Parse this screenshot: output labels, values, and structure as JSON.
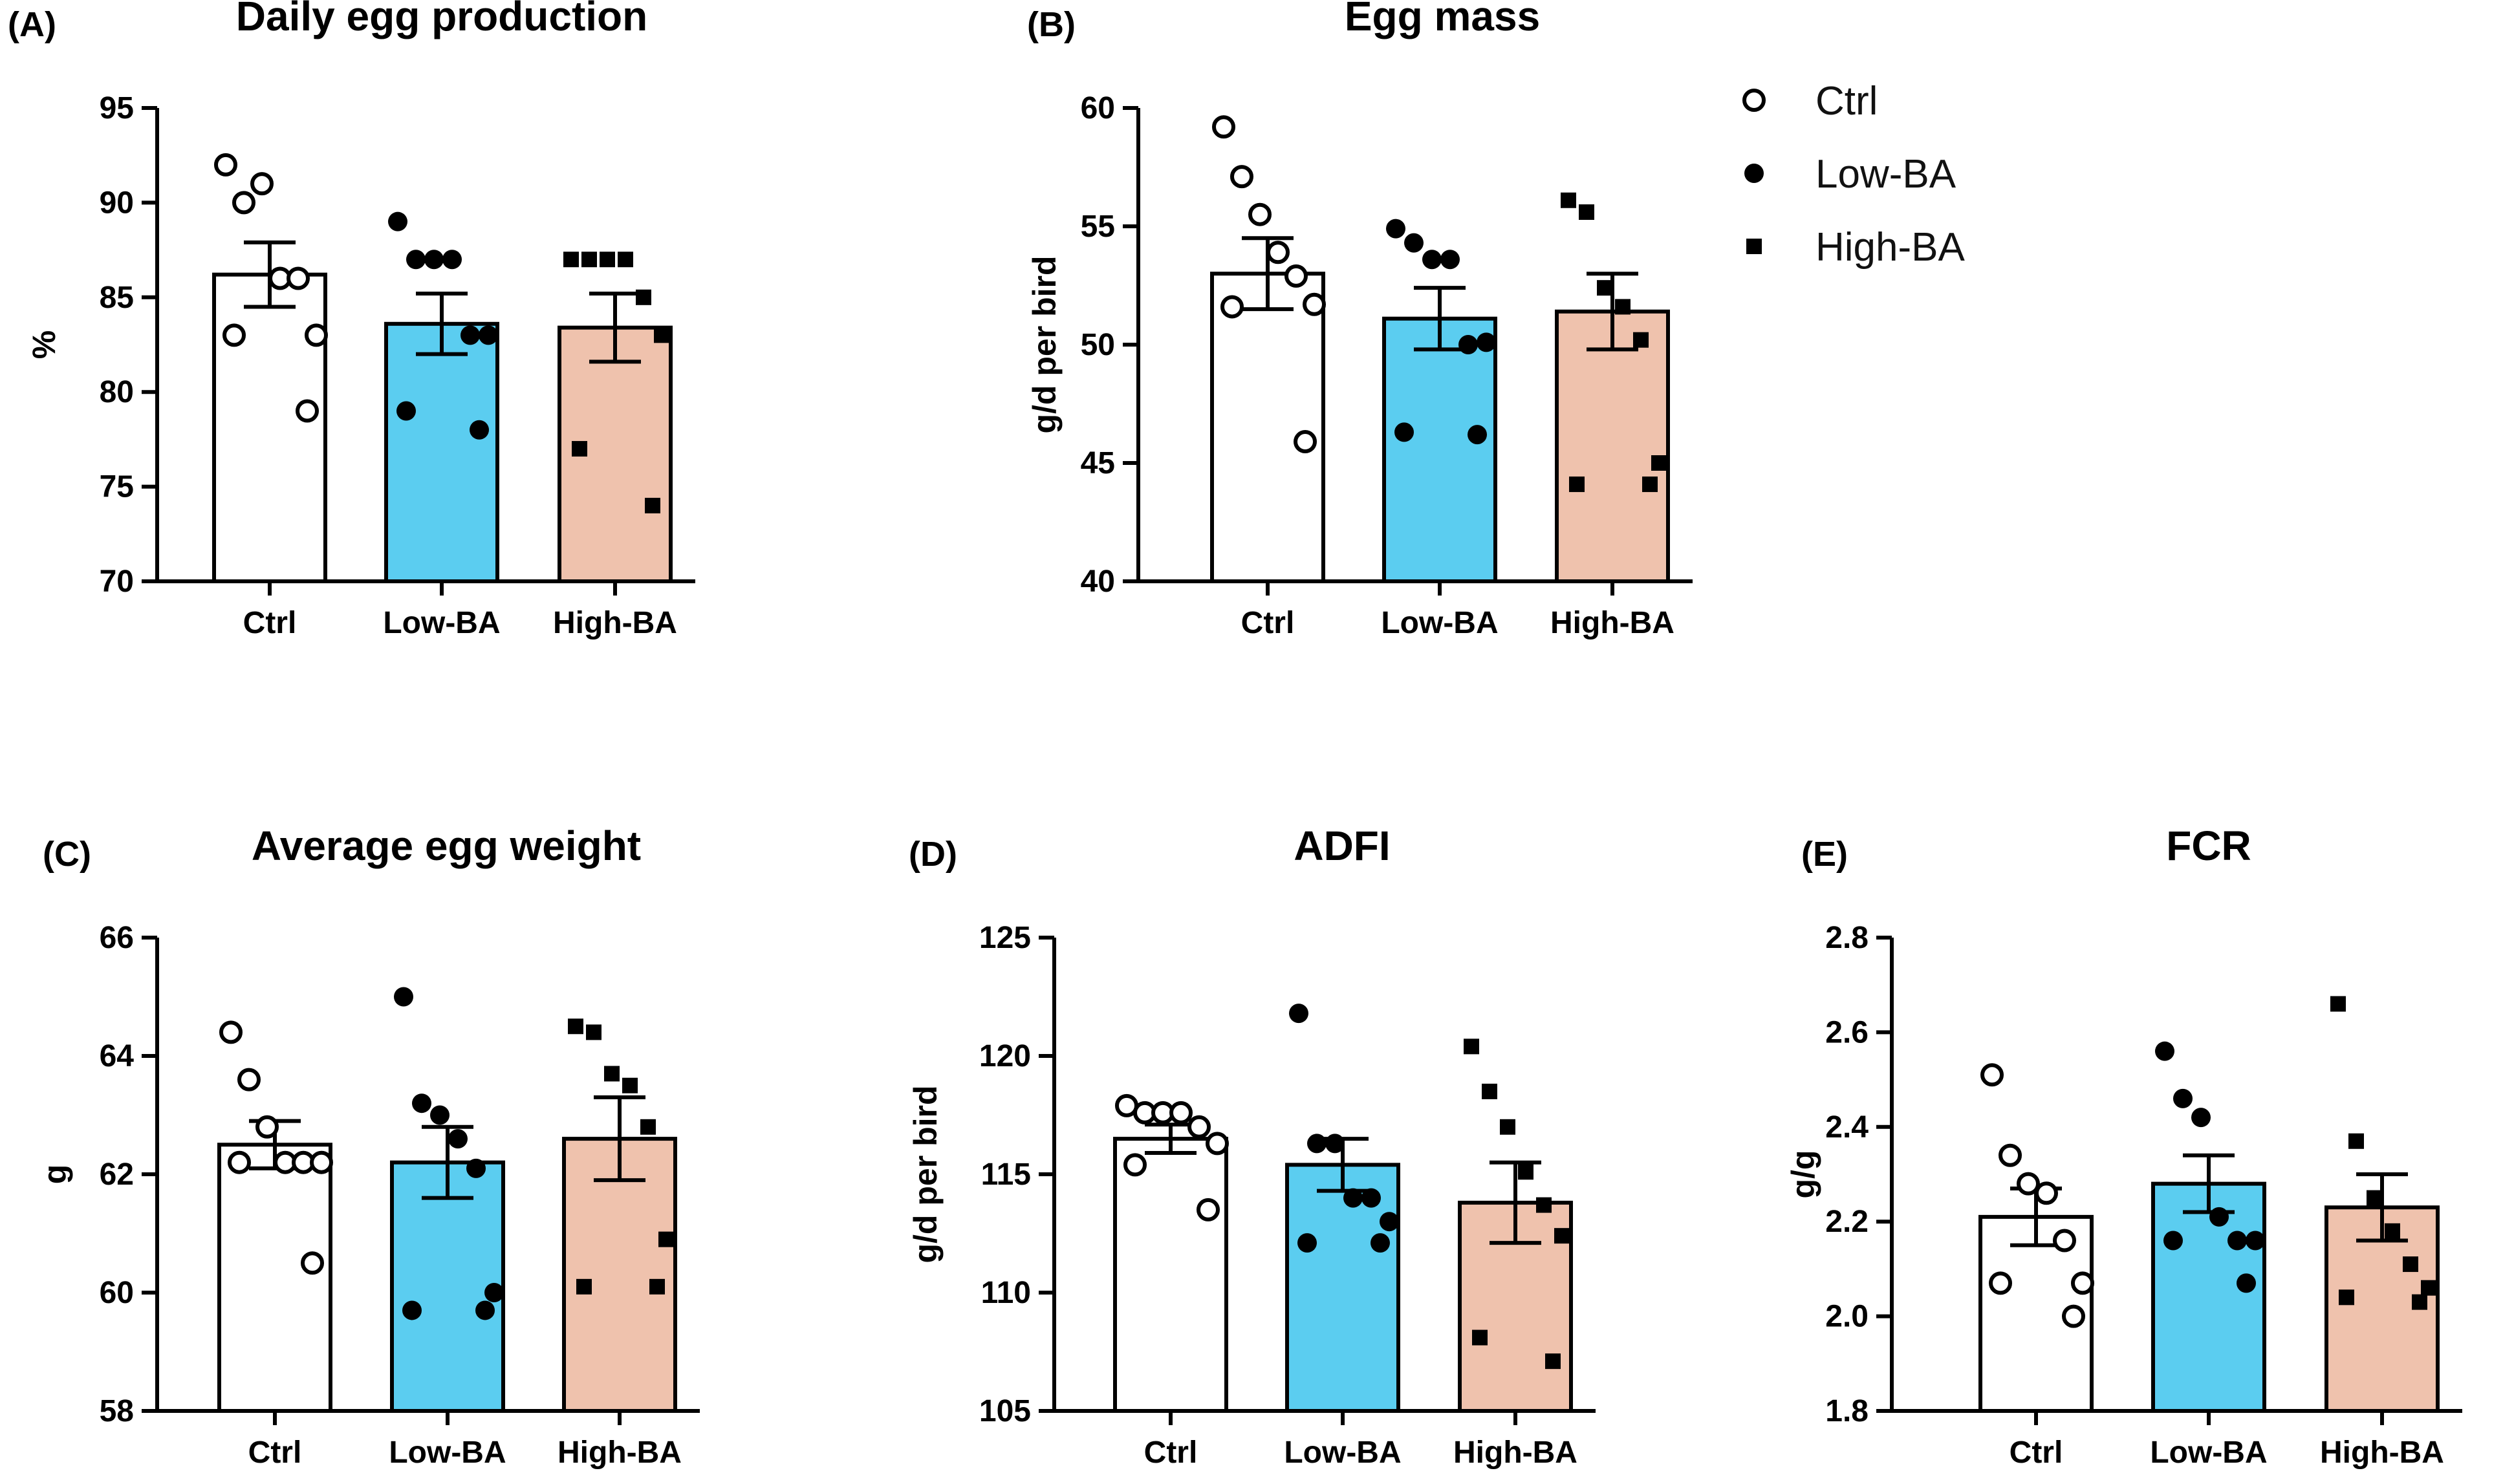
{
  "figure": {
    "legend": [
      {
        "label": "Ctrl",
        "marker": "open-circle"
      },
      {
        "label": "Low-BA",
        "marker": "filled-circle"
      },
      {
        "label": "High-BA",
        "marker": "filled-square"
      }
    ],
    "group_colors": {
      "Ctrl": "#ffffff",
      "Low-BA": "#5bcdf0",
      "High-BA": "#efc2ad"
    },
    "stroke_color": "#000000"
  },
  "chart_data": [
    {
      "id": "A",
      "panel_label": "(A)",
      "type": "bar",
      "title": "Daily egg production",
      "xlabel": "",
      "ylabel": "%",
      "ylim": [
        70,
        95
      ],
      "yticks": [
        70,
        75,
        80,
        85,
        90,
        95
      ],
      "categories": [
        "Ctrl",
        "Low-BA",
        "High-BA"
      ],
      "means": [
        86.2,
        83.6,
        83.4
      ],
      "sem": [
        1.7,
        1.6,
        1.8
      ],
      "points": [
        [
          92,
          90,
          91,
          86,
          86,
          83,
          83,
          79
        ],
        [
          89,
          87,
          87,
          87,
          83,
          83,
          79,
          78
        ],
        [
          87,
          87,
          87,
          87,
          85,
          83,
          77,
          74
        ]
      ]
    },
    {
      "id": "B",
      "panel_label": "(B)",
      "type": "bar",
      "title": "Egg mass",
      "xlabel": "",
      "ylabel": "g/d per bird",
      "ylim": [
        40,
        60
      ],
      "yticks": [
        40,
        45,
        50,
        55,
        60
      ],
      "categories": [
        "Ctrl",
        "Low-BA",
        "High-BA"
      ],
      "means": [
        53.0,
        51.1,
        51.4
      ],
      "sem": [
        1.5,
        1.3,
        1.6
      ],
      "points": [
        [
          59.2,
          57.1,
          55.5,
          53.9,
          52.9,
          51.7,
          51.6,
          45.9
        ],
        [
          54.9,
          54.3,
          53.6,
          53.6,
          50.0,
          50.1,
          46.3,
          46.2
        ],
        [
          56.1,
          55.6,
          52.4,
          51.6,
          50.2,
          45.0,
          44.1,
          44.1
        ]
      ]
    },
    {
      "id": "C",
      "panel_label": "(C)",
      "type": "bar",
      "title": "Average egg weight",
      "xlabel": "",
      "ylabel": "g",
      "ylim": [
        58,
        66
      ],
      "yticks": [
        58,
        60,
        62,
        64,
        66
      ],
      "categories": [
        "Ctrl",
        "Low-BA",
        "High-BA"
      ],
      "means": [
        62.5,
        62.2,
        62.6
      ],
      "sem": [
        0.4,
        0.6,
        0.7
      ],
      "points": [
        [
          64.4,
          63.6,
          62.8,
          62.2,
          62.2,
          62.2,
          62.2,
          60.5
        ],
        [
          65.0,
          63.2,
          63.0,
          62.6,
          62.1,
          60.0,
          59.7,
          59.7
        ],
        [
          64.5,
          64.4,
          63.7,
          63.5,
          62.8,
          60.9,
          60.1,
          60.1
        ]
      ]
    },
    {
      "id": "D",
      "panel_label": "(D)",
      "type": "bar",
      "title": "ADFI",
      "xlabel": "",
      "ylabel": "g/d per bird",
      "ylim": [
        105,
        125
      ],
      "yticks": [
        105,
        110,
        115,
        120,
        125
      ],
      "categories": [
        "Ctrl",
        "Low-BA",
        "High-BA"
      ],
      "means": [
        116.5,
        115.4,
        113.8
      ],
      "sem": [
        0.6,
        1.1,
        1.7
      ],
      "points": [
        [
          117.9,
          117.6,
          117.6,
          117.6,
          117.0,
          116.3,
          115.4,
          113.5
        ],
        [
          121.8,
          116.3,
          116.3,
          114.0,
          114.0,
          113.0,
          112.1,
          112.1
        ],
        [
          120.4,
          118.5,
          117.0,
          115.1,
          113.7,
          112.4,
          108.1,
          107.1
        ]
      ]
    },
    {
      "id": "E",
      "panel_label": "(E)",
      "type": "bar",
      "title": "FCR",
      "xlabel": "",
      "ylabel": "g/g",
      "ylim": [
        1.8,
        2.8
      ],
      "yticks": [
        1.8,
        2.0,
        2.2,
        2.4,
        2.6,
        2.8
      ],
      "categories": [
        "Ctrl",
        "Low-BA",
        "High-BA"
      ],
      "means": [
        2.21,
        2.28,
        2.23
      ],
      "sem": [
        0.06,
        0.06,
        0.07
      ],
      "points": [
        [
          2.51,
          2.34,
          2.28,
          2.26,
          2.16,
          2.07,
          2.07,
          2.0
        ],
        [
          2.56,
          2.46,
          2.42,
          2.21,
          2.16,
          2.16,
          2.16,
          2.07
        ],
        [
          2.66,
          2.37,
          2.25,
          2.18,
          2.11,
          2.06,
          2.04,
          2.03
        ]
      ]
    }
  ]
}
